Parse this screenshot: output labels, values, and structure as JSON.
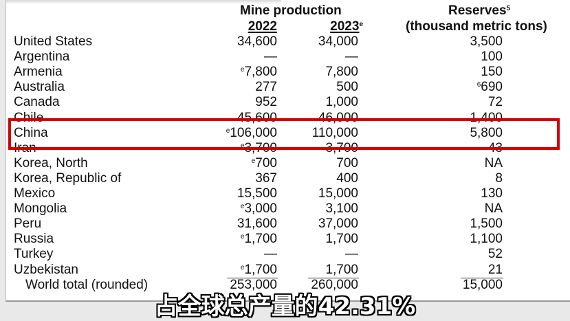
{
  "header": {
    "mine_production": "Mine production",
    "year_2022": "2022",
    "year_2023": "2023",
    "year_2023_note": "e",
    "reserves": "Reserves",
    "reserves_note": "5",
    "reserves_unit": "(thousand metric tons)"
  },
  "rows": [
    {
      "country": "United States",
      "p2022": "34,600",
      "p2022_note": "",
      "p2023": "34,000",
      "reserves": "3,500",
      "reserves_note": ""
    },
    {
      "country": "Argentina",
      "p2022": "—",
      "p2022_note": "",
      "p2023": "—",
      "reserves": "100",
      "reserves_note": ""
    },
    {
      "country": "Armenia",
      "p2022": "7,800",
      "p2022_note": "e",
      "p2023": "7,800",
      "reserves": "150",
      "reserves_note": ""
    },
    {
      "country": "Australia",
      "p2022": "277",
      "p2022_note": "",
      "p2023": "500",
      "reserves": "690",
      "reserves_note": "6"
    },
    {
      "country": "Canada",
      "p2022": "952",
      "p2022_note": "",
      "p2023": "1,000",
      "reserves": "72",
      "reserves_note": ""
    },
    {
      "country": "Chile",
      "p2022": "45,600",
      "p2022_note": "",
      "p2023": "46,000",
      "reserves": "1,400",
      "reserves_note": ""
    },
    {
      "country": "China",
      "p2022": "106,000",
      "p2022_note": "e",
      "p2023": "110,000",
      "reserves": "5,800",
      "reserves_note": ""
    },
    {
      "country": "Iran",
      "p2022": "3,700",
      "p2022_note": "e",
      "p2023": "3,700",
      "reserves": "43",
      "reserves_note": ""
    },
    {
      "country": "Korea, North",
      "p2022": "700",
      "p2022_note": "e",
      "p2023": "700",
      "reserves": "NA",
      "reserves_note": ""
    },
    {
      "country": "Korea, Republic of",
      "p2022": "367",
      "p2022_note": "",
      "p2023": "400",
      "reserves": "8",
      "reserves_note": ""
    },
    {
      "country": "Mexico",
      "p2022": "15,500",
      "p2022_note": "",
      "p2023": "15,000",
      "reserves": "130",
      "reserves_note": ""
    },
    {
      "country": "Mongolia",
      "p2022": "3,000",
      "p2022_note": "e",
      "p2023": "3,100",
      "reserves": "NA",
      "reserves_note": ""
    },
    {
      "country": "Peru",
      "p2022": "31,600",
      "p2022_note": "",
      "p2023": "37,000",
      "reserves": "1,500",
      "reserves_note": ""
    },
    {
      "country": "Russia",
      "p2022": "1,700",
      "p2022_note": "e",
      "p2023": "1,700",
      "reserves": "1,100",
      "reserves_note": ""
    },
    {
      "country": "Turkey",
      "p2022": "—",
      "p2022_note": "",
      "p2023": "—",
      "reserves": "52",
      "reserves_note": ""
    },
    {
      "country": "Uzbekistan",
      "p2022": "1,700",
      "p2022_note": "e",
      "p2023": "1,700",
      "reserves": "21",
      "reserves_note": ""
    }
  ],
  "total": {
    "label": "World total (rounded)",
    "p2022": "253,000",
    "p2023": "260,000",
    "reserves": "15,000"
  },
  "highlight": {
    "country": "China",
    "color": "#d40000"
  },
  "subtitle": "占全球总产量的42.31%"
}
